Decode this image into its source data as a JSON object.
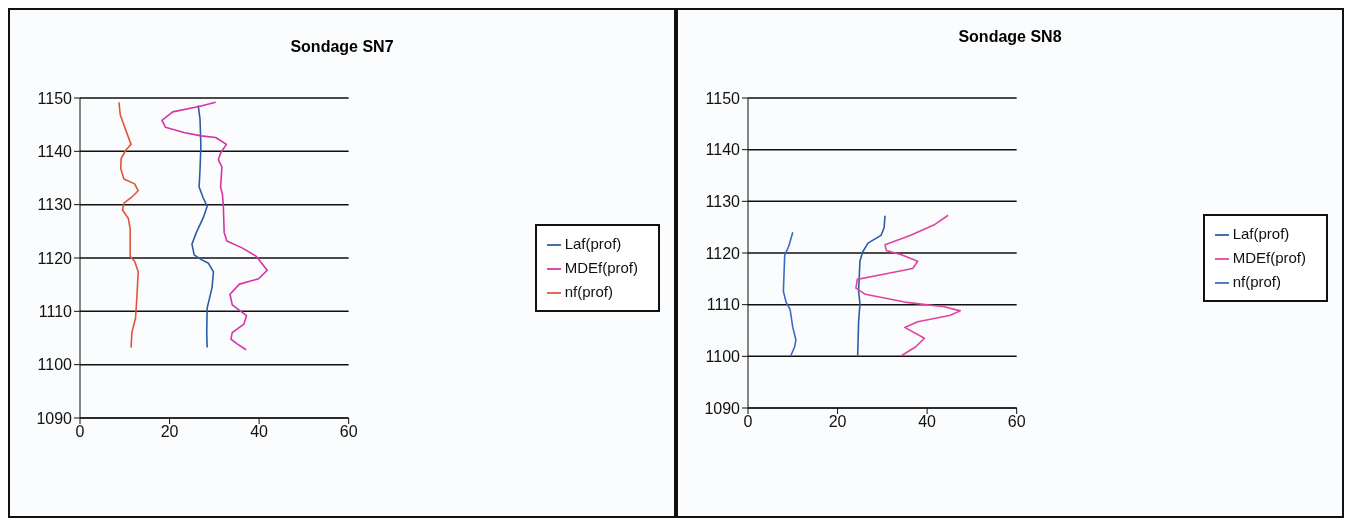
{
  "chart_data": [
    {
      "type": "line",
      "title": "Sondage SN7",
      "xlim": [
        0,
        60
      ],
      "xticks": [
        0,
        20,
        40,
        60
      ],
      "ylim": [
        1090,
        1150
      ],
      "yticks": [
        1090,
        1100,
        1110,
        1120,
        1130,
        1140,
        1150
      ],
      "grid": "y",
      "legend": "right",
      "series": [
        {
          "name": "Laf(prof)",
          "color": "#2d5ca6",
          "x": [
            26.4,
            26.8,
            27.0,
            26.8,
            26.6,
            27.5,
            28.4,
            27.6,
            26.0,
            25.0,
            25.5,
            27.1,
            28.7,
            29.8,
            29.5,
            28.4,
            28.3,
            28.4
          ],
          "values": [
            1148.6,
            1146.1,
            1141.0,
            1136.5,
            1133.3,
            1131.3,
            1129.7,
            1127.7,
            1124.8,
            1122.6,
            1120.6,
            1119.7,
            1119.0,
            1117.4,
            1114.5,
            1110.6,
            1106.1,
            1103.2
          ]
        },
        {
          "name": "MDEf(prof)",
          "color": "#d633a8",
          "x": [
            30.3,
            26.6,
            20.7,
            18.3,
            19.1,
            23.4,
            27.1,
            30.3,
            32.7,
            31.4,
            30.9,
            31.7,
            31.4,
            31.8,
            32.0,
            32.2,
            32.8,
            36.2,
            39.4,
            41.8,
            39.9,
            35.6,
            33.5,
            34.0,
            37.2,
            36.6,
            34.0,
            33.7,
            35.1,
            37.1
          ],
          "values": [
            1149.2,
            1148.4,
            1147.4,
            1145.8,
            1144.5,
            1143.5,
            1142.9,
            1142.6,
            1141.3,
            1139.7,
            1138.4,
            1137.1,
            1133.3,
            1132.0,
            1130.0,
            1124.8,
            1123.2,
            1121.9,
            1120.3,
            1117.7,
            1116.1,
            1115.1,
            1113.2,
            1111.2,
            1109.2,
            1107.6,
            1106.0,
            1104.8,
            1103.9,
            1102.8
          ]
        },
        {
          "name": "nf(prof)",
          "color": "#e0553a",
          "x": [
            8.7,
            9.0,
            10.7,
            11.4,
            10.3,
            9.2,
            9.1,
            9.8,
            12.2,
            13.0,
            11.4,
            9.8,
            9.5,
            10.8,
            11.2,
            11.2,
            12.2,
            13.0,
            12.7,
            12.4,
            11.6,
            11.4
          ],
          "values": [
            1149.2,
            1146.8,
            1142.9,
            1141.3,
            1140.3,
            1138.7,
            1136.8,
            1134.8,
            1133.9,
            1132.6,
            1131.3,
            1130.3,
            1129.0,
            1127.4,
            1125.5,
            1120.3,
            1119.4,
            1117.4,
            1112.6,
            1108.7,
            1106.1,
            1103.2
          ]
        }
      ]
    },
    {
      "type": "line",
      "title": "Sondage SN8",
      "xlim": [
        0,
        60
      ],
      "xticks": [
        0,
        20,
        40,
        60
      ],
      "ylim": [
        1090,
        1150
      ],
      "yticks": [
        1090,
        1100,
        1110,
        1120,
        1130,
        1140,
        1150
      ],
      "grid": "y",
      "legend": "right",
      "series": [
        {
          "name": "Laf(prof)",
          "color": "#2d5ca6",
          "x": [
            30.6,
            30.4,
            29.7,
            26.8,
            25.6,
            25.0,
            24.7,
            25.0,
            24.7,
            24.5
          ],
          "values": [
            1127.2,
            1124.9,
            1123.4,
            1121.9,
            1120.2,
            1118.4,
            1112.6,
            1110.2,
            1106.7,
            1100.2
          ]
        },
        {
          "name": "MDEf(prof)",
          "color": "#e0449e",
          "x": [
            44.7,
            41.5,
            36.2,
            30.6,
            30.9,
            34.4,
            37.9,
            36.8,
            29.7,
            24.4,
            24.1,
            26.2,
            35.0,
            43.8,
            47.4,
            45.0,
            37.9,
            35.0,
            39.4,
            37.4,
            34.4
          ],
          "values": [
            1127.3,
            1125.4,
            1123.4,
            1121.6,
            1120.5,
            1119.6,
            1118.4,
            1117.0,
            1115.8,
            1114.9,
            1113.2,
            1112.0,
            1110.5,
            1109.6,
            1108.8,
            1107.9,
            1106.7,
            1105.6,
            1103.5,
            1101.8,
            1100.2
          ]
        },
        {
          "name": "nf(prof)",
          "color": "#3a6bc4",
          "x": [
            10.0,
            9.1,
            8.2,
            7.9,
            8.5,
            9.4,
            10.0,
            10.7,
            10.4,
            9.6
          ],
          "values": [
            1124.0,
            1121.3,
            1119.6,
            1112.6,
            1110.5,
            1109.1,
            1105.6,
            1103.2,
            1101.8,
            1100.2
          ]
        }
      ]
    }
  ]
}
